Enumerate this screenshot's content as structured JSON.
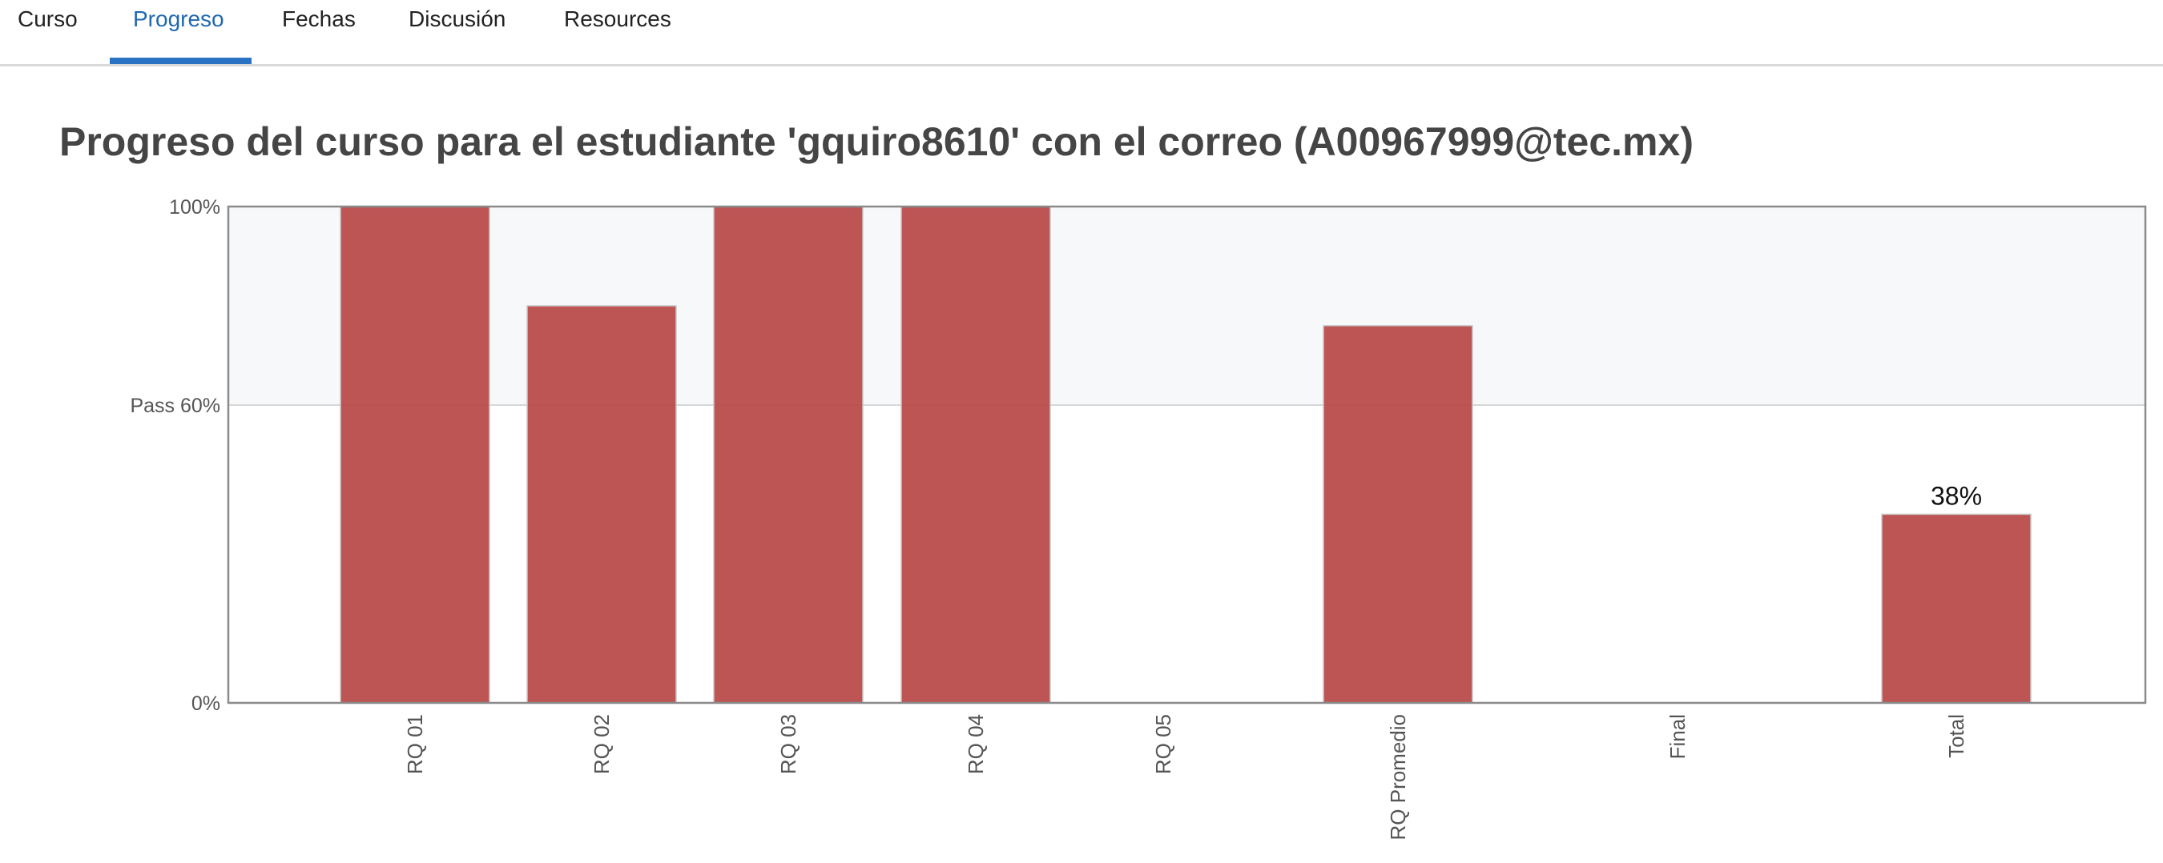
{
  "tabs": [
    {
      "label": "Curso"
    },
    {
      "label": "Progreso"
    },
    {
      "label": "Fechas"
    },
    {
      "label": "Discusión"
    },
    {
      "label": "Resources"
    }
  ],
  "active_tab": "Progreso",
  "page_title": "Progreso del curso para el estudiante 'gquiro8610' con el correo (A00967999@tec.mx)",
  "colors": {
    "bar": "#b94747",
    "pass_band": "#f7f8fa",
    "tab_active": "#1f68b1"
  },
  "chart_data": {
    "type": "bar",
    "categories": [
      "RQ 01",
      "RQ 02",
      "RQ 03",
      "RQ 04",
      "RQ 05",
      "RQ Promedio",
      "Final",
      "Total"
    ],
    "values": [
      100,
      80,
      100,
      100,
      0,
      76,
      0,
      38
    ],
    "ylim": [
      0,
      100
    ],
    "yticks": [
      {
        "value": 100,
        "label": "100%"
      },
      {
        "value": 60,
        "label": "Pass 60%"
      },
      {
        "value": 0,
        "label": "0%"
      }
    ],
    "pass_threshold": 60,
    "data_labels": [
      {
        "category": "Total",
        "label": "38%"
      }
    ],
    "xlabel": "",
    "ylabel": ""
  }
}
